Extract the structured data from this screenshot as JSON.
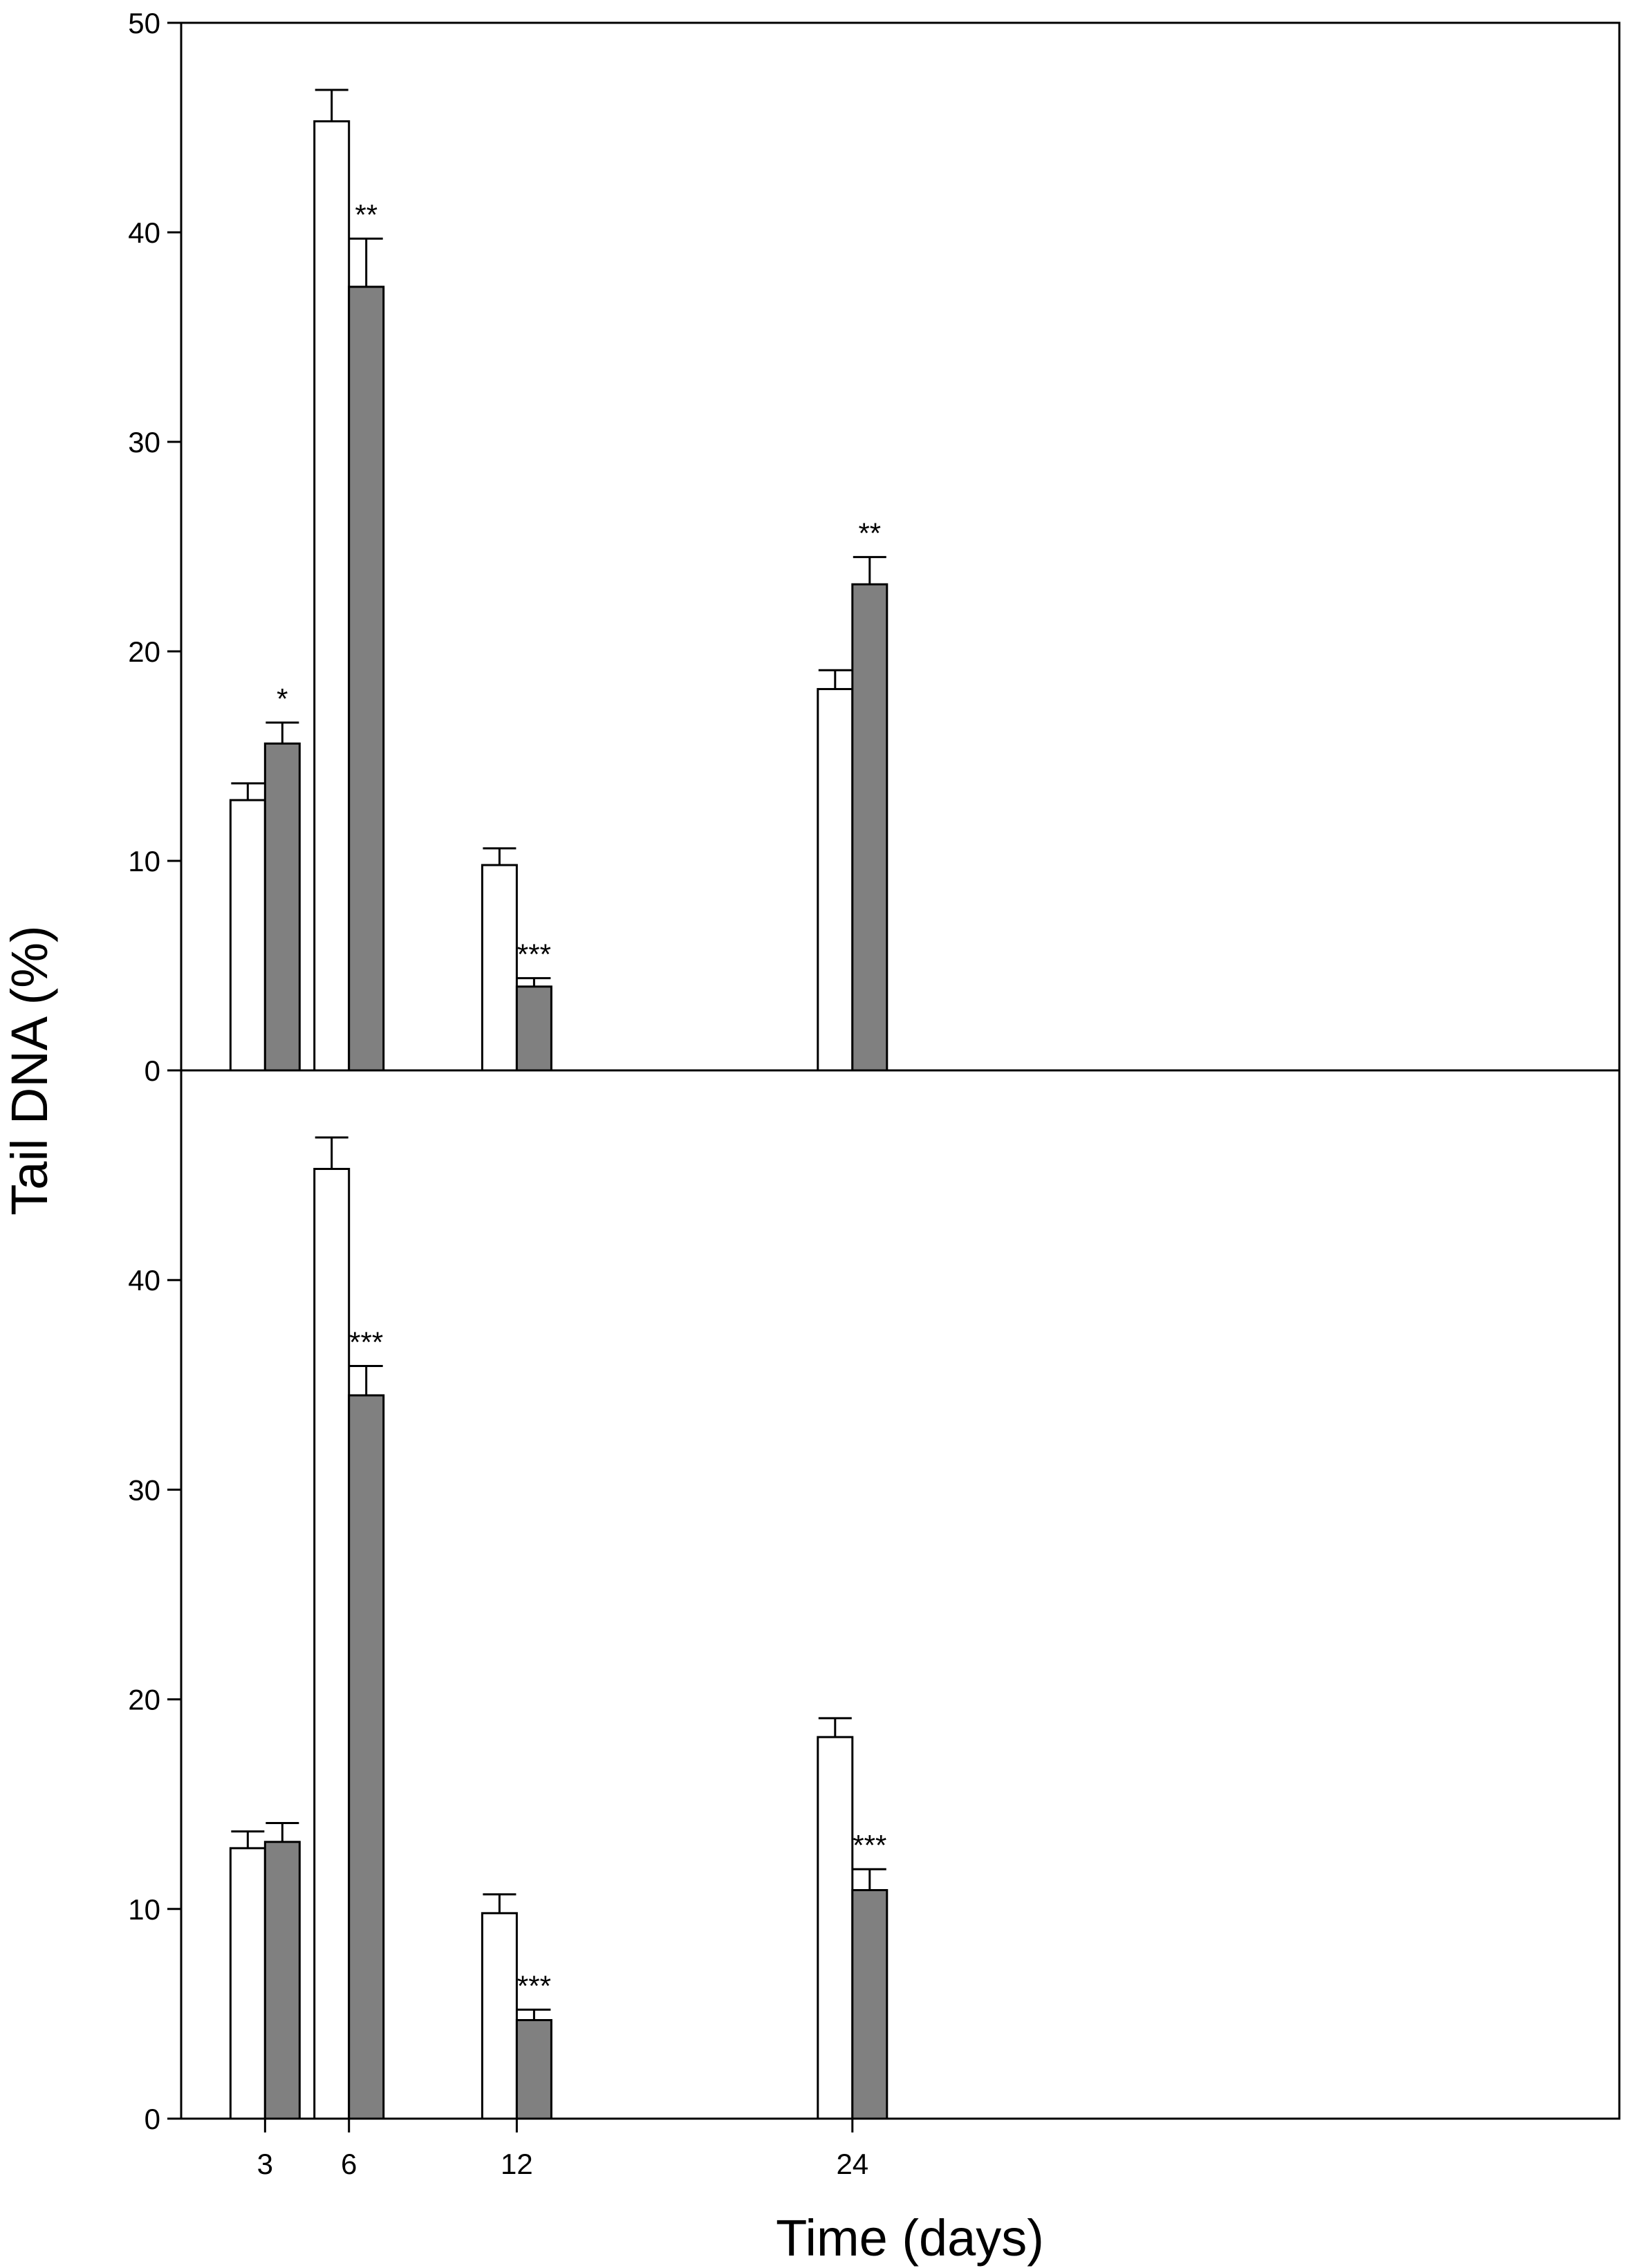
{
  "chart_data": {
    "type": "bar",
    "ylabel": "Tail DNA (%)",
    "xlabel": "Time (days)",
    "x_ticks": [
      "3",
      "6",
      "12",
      "24"
    ],
    "x_values": [
      3,
      6,
      12,
      24
    ],
    "colors": {
      "open": "#ffffff",
      "filled": "#808080",
      "edge": "#000000"
    },
    "panels": [
      {
        "position": "top",
        "ylim": [
          0,
          50
        ],
        "yticks": [
          "0",
          "10",
          "20",
          "30",
          "40",
          "50"
        ],
        "series": [
          {
            "style": "open",
            "values": [
              12.9,
              45.3,
              9.8,
              18.2
            ],
            "errors": [
              0.8,
              1.5,
              0.8,
              0.9
            ]
          },
          {
            "style": "filled",
            "values": [
              15.6,
              37.4,
              4.0,
              23.2
            ],
            "errors": [
              1.0,
              2.3,
              0.4,
              1.3
            ],
            "annotations": [
              "*",
              "**",
              "***",
              "**"
            ]
          }
        ]
      },
      {
        "position": "bottom",
        "ylim": [
          0,
          50
        ],
        "yticks": [
          "0",
          "10",
          "20",
          "30",
          "40"
        ],
        "series": [
          {
            "style": "open",
            "values": [
              12.9,
              45.3,
              9.8,
              18.2
            ],
            "errors": [
              0.8,
              1.5,
              0.9,
              0.9
            ]
          },
          {
            "style": "filled",
            "values": [
              13.2,
              34.5,
              4.7,
              10.9
            ],
            "errors": [
              0.9,
              1.4,
              0.5,
              1.0
            ],
            "annotations": [
              "",
              "***",
              "***",
              "***"
            ]
          }
        ]
      }
    ]
  }
}
